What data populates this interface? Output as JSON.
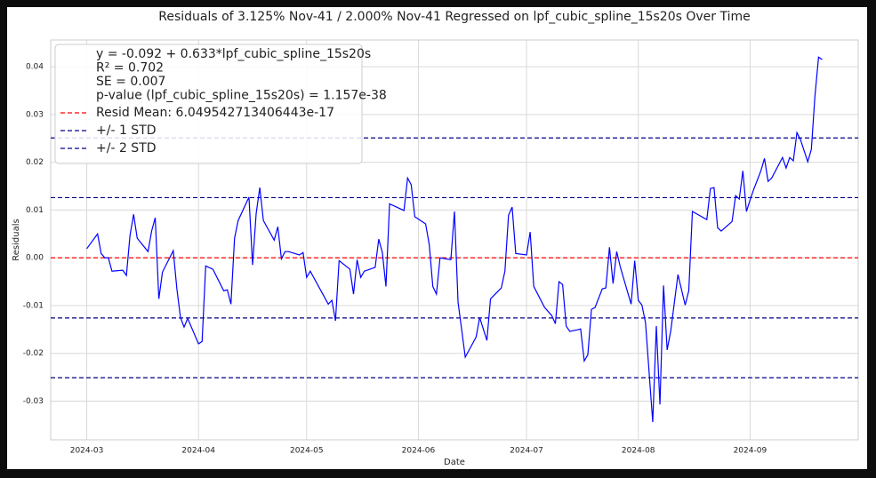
{
  "chart_data": {
    "type": "line",
    "title": "Residuals of 3.125% Nov-41 / 2.000% Nov-41 Regressed on lpf_cubic_spline_15s20s Over Time",
    "x_label": "Date",
    "y_label": "Residuals",
    "x": [
      19783,
      19786,
      19787,
      19788,
      19789,
      19790,
      19793,
      19794,
      19795,
      19796,
      19797,
      19800,
      19801,
      19802,
      19803,
      19804,
      19807,
      19808,
      19809,
      19810,
      19811,
      19814,
      19815,
      19816,
      19818,
      19821,
      19822,
      19823,
      19824,
      19825,
      19828,
      19829,
      19830,
      19831,
      19832,
      19835,
      19836,
      19837,
      19838,
      19839,
      19842,
      19843,
      19844,
      19845,
      19850,
      19851,
      19852,
      19853,
      19856,
      19857,
      19858,
      19859,
      19860,
      19863,
      19864,
      19865,
      19866,
      19867,
      19871,
      19872,
      19873,
      19874,
      19877,
      19878,
      19879,
      19880,
      19881,
      19884,
      19885,
      19886,
      19888,
      19891,
      19892,
      19893,
      19894,
      19895,
      19898,
      19899,
      19900,
      19901,
      19902,
      19905,
      19906,
      19907,
      19910,
      19912,
      19913,
      19914,
      19915,
      19916,
      19917,
      19919,
      19920,
      19921,
      19922,
      19923,
      19924,
      19926,
      19927,
      19928,
      19929,
      19930,
      19931,
      19934,
      19935,
      19936,
      19937,
      19938,
      19940,
      19941,
      19942,
      19943,
      19944,
      19945,
      19947,
      19949,
      19950,
      19951,
      19955,
      19956,
      19957,
      19958,
      19959,
      19962,
      19963,
      19964,
      19965,
      19966,
      19967,
      19968,
      19970,
      19971,
      19972,
      19973,
      19976,
      19977,
      19978,
      19979,
      19980,
      19981,
      19983,
      19984,
      19985,
      19986,
      19987
    ],
    "values": [
      0.0019,
      0.005,
      0.0009,
      0.0,
      0.0,
      -0.0028,
      -0.0026,
      -0.0037,
      0.0047,
      0.0091,
      0.0041,
      0.0013,
      0.0056,
      0.0084,
      -0.0086,
      -0.003,
      0.0015,
      -0.0065,
      -0.0125,
      -0.0145,
      -0.0127,
      -0.018,
      -0.0175,
      -0.0017,
      -0.0024,
      -0.0069,
      -0.0067,
      -0.0097,
      0.0041,
      0.0078,
      0.0127,
      -0.0015,
      0.0093,
      0.0147,
      0.0078,
      0.0037,
      0.0065,
      -0.0002,
      0.0013,
      0.0013,
      0.0006,
      0.0011,
      -0.0041,
      -0.0028,
      -0.0097,
      -0.0089,
      -0.0132,
      -0.0006,
      -0.0024,
      -0.0076,
      -0.0004,
      -0.0041,
      -0.0028,
      -0.002,
      0.0039,
      0.0011,
      -0.006,
      0.0113,
      0.0099,
      0.0167,
      0.0153,
      0.0086,
      0.0071,
      0.0028,
      -0.006,
      -0.0076,
      0.0,
      -0.0004,
      0.0097,
      -0.0093,
      -0.0208,
      -0.0166,
      -0.0125,
      -0.0149,
      -0.0173,
      -0.0086,
      -0.0063,
      -0.0028,
      0.0089,
      0.0106,
      0.0009,
      0.0006,
      0.0054,
      -0.006,
      -0.0104,
      -0.0121,
      -0.0138,
      -0.005,
      -0.0056,
      -0.0143,
      -0.0154,
      -0.0151,
      -0.0149,
      -0.0216,
      -0.0203,
      -0.0108,
      -0.0104,
      -0.0065,
      -0.0063,
      0.0022,
      -0.0054,
      0.0013,
      -0.0019,
      -0.0097,
      -0.0006,
      -0.0089,
      -0.0099,
      -0.0136,
      -0.0344,
      -0.0143,
      -0.0307,
      -0.0058,
      -0.0193,
      -0.0153,
      -0.0035,
      -0.0099,
      -0.0069,
      0.0097,
      0.008,
      0.0145,
      0.0147,
      0.0063,
      0.0056,
      0.0076,
      0.013,
      0.0123,
      0.0182,
      0.0097,
      0.0121,
      0.0143,
      0.0182,
      0.0208,
      0.016,
      0.0167,
      0.021,
      0.0188,
      0.021,
      0.0203,
      0.0262,
      0.0247,
      0.0201,
      0.0227,
      0.0339,
      0.042,
      0.0415
    ],
    "color": "#0000ff",
    "reference_lines": [
      {
        "name": "Resid Mean: 6.049542713406443e-17",
        "color": "#ff0000",
        "values": [
          6.049542713406443e-17
        ]
      },
      {
        "name": "+/- 1 STD",
        "color": "#00008b",
        "values": [
          0.0126,
          -0.0126
        ]
      },
      {
        "name": "+/- 2 STD",
        "color": "#00008b",
        "values": [
          0.0251,
          -0.0251
        ]
      }
    ],
    "legend_text": [
      "y = -0.092 + 0.633*lpf_cubic_spline_15s20s",
      "R² = 0.702",
      "SE = 0.007",
      "p-value (lpf_cubic_spline_15s20s) = 1.157e-38"
    ],
    "legend_position": "upper left",
    "xlim": [
      19773,
      19997
    ],
    "xticks": [
      {
        "value": 19783,
        "label": "2024-03"
      },
      {
        "value": 19814,
        "label": "2024-04"
      },
      {
        "value": 19844,
        "label": "2024-05"
      },
      {
        "value": 19875,
        "label": "2024-06"
      },
      {
        "value": 19905,
        "label": "2024-07"
      },
      {
        "value": 19936,
        "label": "2024-08"
      },
      {
        "value": 19967,
        "label": "2024-09"
      }
    ],
    "ylim": [
      -0.0381,
      0.0456
    ],
    "yticks": [
      -0.03,
      -0.02,
      -0.01,
      {
        "value": 0,
        "label": "0.00"
      },
      0.01,
      0.02,
      0.03,
      0.04
    ],
    "grid": true
  }
}
